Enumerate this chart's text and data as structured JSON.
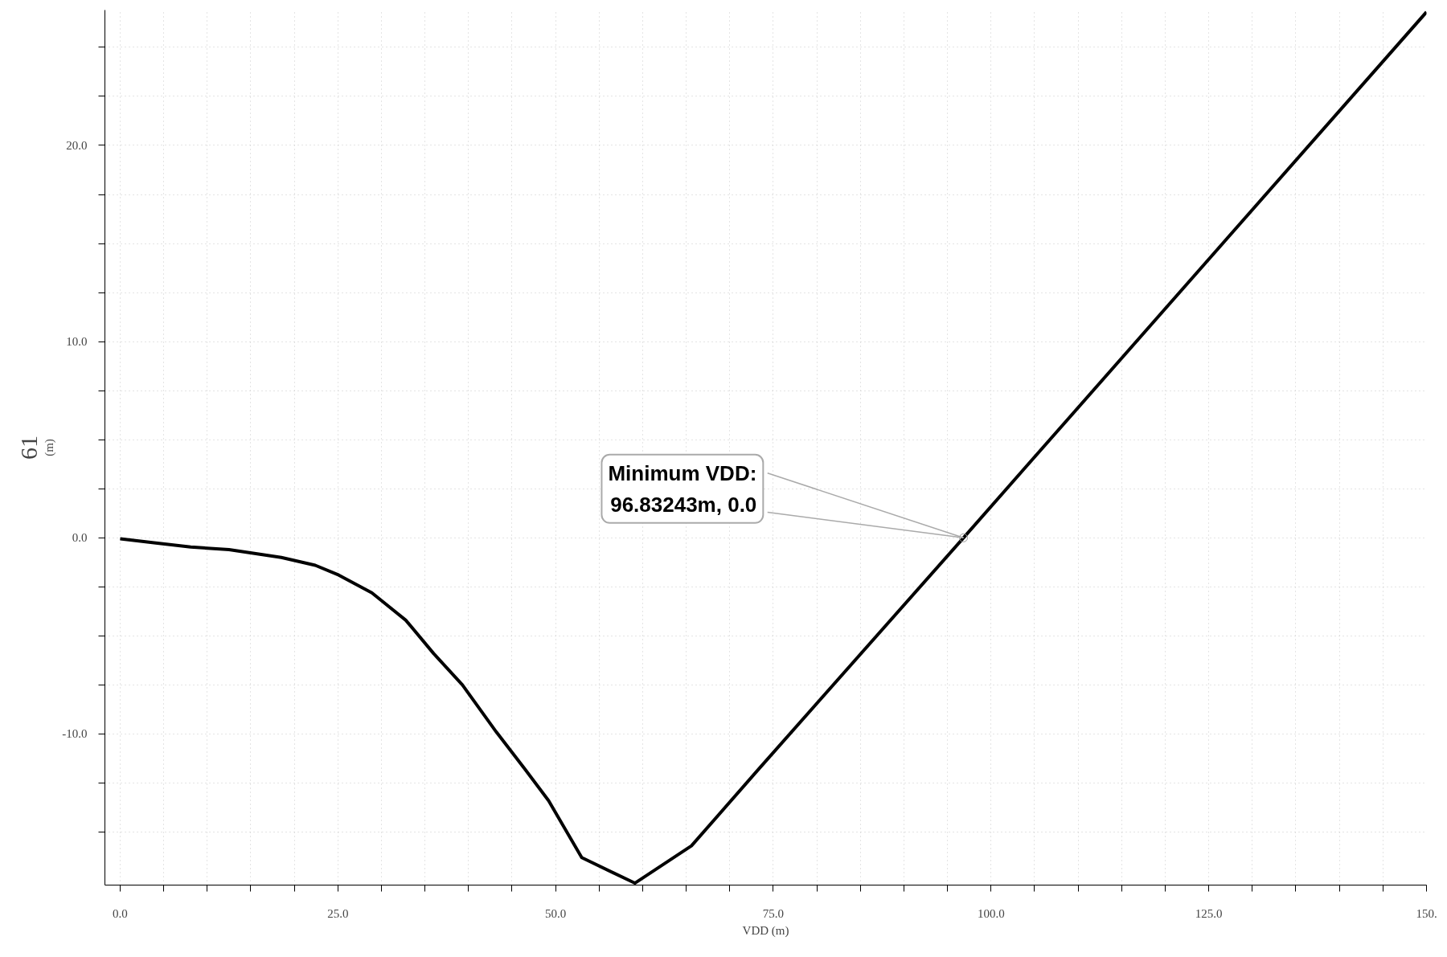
{
  "chart_data": {
    "type": "line",
    "xlabel": "VDD (m)",
    "ylabel": "(m)",
    "x": [
      0,
      3.7,
      8.1,
      12.5,
      18.5,
      22.4,
      25.1,
      28.9,
      32.8,
      36.0,
      39.3,
      43.2,
      46.5,
      49.2,
      53.0,
      59.1,
      65.6,
      73.3,
      96.83243,
      150
    ],
    "series": [
      {
        "color": "#000000",
        "values": [
          -0.05,
          -0.24,
          -0.47,
          -0.6,
          -1.0,
          -1.4,
          -1.9,
          -2.8,
          -4.2,
          -5.9,
          -7.5,
          -9.9,
          -11.8,
          -13.4,
          -16.3,
          -17.6,
          -15.7,
          -11.8,
          0.0,
          26.8
        ]
      }
    ],
    "xlim": [
      -1.75,
      150
    ],
    "ylim": [
      -17.7,
      26.9
    ],
    "xticks": [
      {
        "value": 0,
        "label": "0.0"
      },
      {
        "value": 5,
        "label": null
      },
      {
        "value": 10,
        "label": null
      },
      {
        "value": 15,
        "label": null
      },
      {
        "value": 20,
        "label": null
      },
      {
        "value": 25,
        "label": "25.0"
      },
      {
        "value": 30,
        "label": null
      },
      {
        "value": 35,
        "label": null
      },
      {
        "value": 40,
        "label": null
      },
      {
        "value": 45,
        "label": null
      },
      {
        "value": 50,
        "label": "50.0"
      },
      {
        "value": 55,
        "label": null
      },
      {
        "value": 60,
        "label": null
      },
      {
        "value": 65,
        "label": null
      },
      {
        "value": 70,
        "label": null
      },
      {
        "value": 75,
        "label": "75.0"
      },
      {
        "value": 80,
        "label": null
      },
      {
        "value": 85,
        "label": null
      },
      {
        "value": 90,
        "label": null
      },
      {
        "value": 95,
        "label": null
      },
      {
        "value": 100,
        "label": "100.0"
      },
      {
        "value": 105,
        "label": null
      },
      {
        "value": 110,
        "label": null
      },
      {
        "value": 115,
        "label": null
      },
      {
        "value": 120,
        "label": null
      },
      {
        "value": 125,
        "label": "125.0"
      },
      {
        "value": 130,
        "label": null
      },
      {
        "value": 135,
        "label": null
      },
      {
        "value": 140,
        "label": null
      },
      {
        "value": 145,
        "label": null
      },
      {
        "value": 150,
        "label": "150."
      }
    ],
    "yticks": [
      {
        "value": -15,
        "label": null
      },
      {
        "value": -12.5,
        "label": null
      },
      {
        "value": -10,
        "label": "-10.0"
      },
      {
        "value": -7.5,
        "label": null
      },
      {
        "value": -5,
        "label": null
      },
      {
        "value": -2.5,
        "label": null
      },
      {
        "value": 0,
        "label": "0.0"
      },
      {
        "value": 2.5,
        "label": null
      },
      {
        "value": 5,
        "label": null
      },
      {
        "value": 7.5,
        "label": null
      },
      {
        "value": 10,
        "label": "10.0"
      },
      {
        "value": 12.5,
        "label": null
      },
      {
        "value": 15,
        "label": null
      },
      {
        "value": 17.5,
        "label": null
      },
      {
        "value": 20,
        "label": "20.0"
      },
      {
        "value": 22.5,
        "label": null
      },
      {
        "value": 25,
        "label": null
      }
    ],
    "grid": true,
    "marker": "none",
    "line_style": "solid",
    "annotations": [
      {
        "text": "Minimum VDD:\n96.83243m, 0.0",
        "x": 96.83243,
        "y": 0.0
      },
      "61"
    ]
  }
}
